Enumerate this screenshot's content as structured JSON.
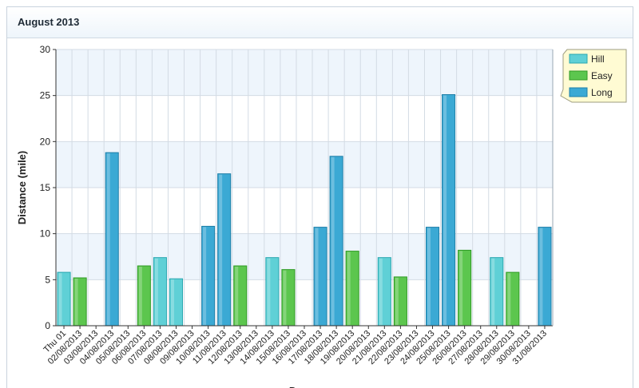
{
  "panel": {
    "title": "August 2013"
  },
  "chart_data": {
    "type": "bar",
    "title": "",
    "ylabel": "Distance (mile)",
    "xlabel": "D...",
    "ylim": [
      0,
      30
    ],
    "yticks": [
      0,
      5,
      10,
      15,
      20,
      25,
      30
    ],
    "grid": true,
    "legend_position": "top-right",
    "categories": [
      "Thu 01",
      "02/08/2013",
      "03/08/2013",
      "04/08/2013",
      "05/08/2013",
      "06/08/2013",
      "07/08/2013",
      "08/08/2013",
      "09/08/2013",
      "10/08/2013",
      "11/08/2013",
      "12/08/2013",
      "13/08/2013",
      "14/08/2013",
      "15/08/2013",
      "16/08/2013",
      "17/08/2013",
      "18/08/2013",
      "19/08/2013",
      "20/08/2013",
      "21/08/2013",
      "22/08/2013",
      "23/08/2013",
      "24/08/2013",
      "25/08/2013",
      "26/08/2013",
      "27/08/2013",
      "28/08/2013",
      "29/08/2013",
      "30/08/2013",
      "31/08/2013"
    ],
    "series": [
      {
        "name": "Hill",
        "color": "#5fd0d6",
        "stroke": "#2aa7b0",
        "points": [
          {
            "i": 0,
            "v": 5.8
          },
          {
            "i": 6,
            "v": 7.4
          },
          {
            "i": 7,
            "v": 5.1
          },
          {
            "i": 13,
            "v": 7.4
          },
          {
            "i": 20,
            "v": 7.4
          },
          {
            "i": 27,
            "v": 7.4
          }
        ]
      },
      {
        "name": "Easy",
        "color": "#5cc64e",
        "stroke": "#2f9a25",
        "points": [
          {
            "i": 1,
            "v": 5.2
          },
          {
            "i": 5,
            "v": 6.5
          },
          {
            "i": 11,
            "v": 6.5
          },
          {
            "i": 14,
            "v": 6.1
          },
          {
            "i": 18,
            "v": 8.1
          },
          {
            "i": 21,
            "v": 5.3
          },
          {
            "i": 25,
            "v": 8.2
          },
          {
            "i": 28,
            "v": 5.8
          }
        ]
      },
      {
        "name": "Long",
        "color": "#3ba9d4",
        "stroke": "#1f7fa8",
        "points": [
          {
            "i": 3,
            "v": 18.8
          },
          {
            "i": 9,
            "v": 10.8
          },
          {
            "i": 10,
            "v": 16.5
          },
          {
            "i": 16,
            "v": 10.7
          },
          {
            "i": 17,
            "v": 18.4
          },
          {
            "i": 23,
            "v": 10.7
          },
          {
            "i": 24,
            "v": 25.1
          },
          {
            "i": 30,
            "v": 10.7
          }
        ]
      }
    ]
  }
}
